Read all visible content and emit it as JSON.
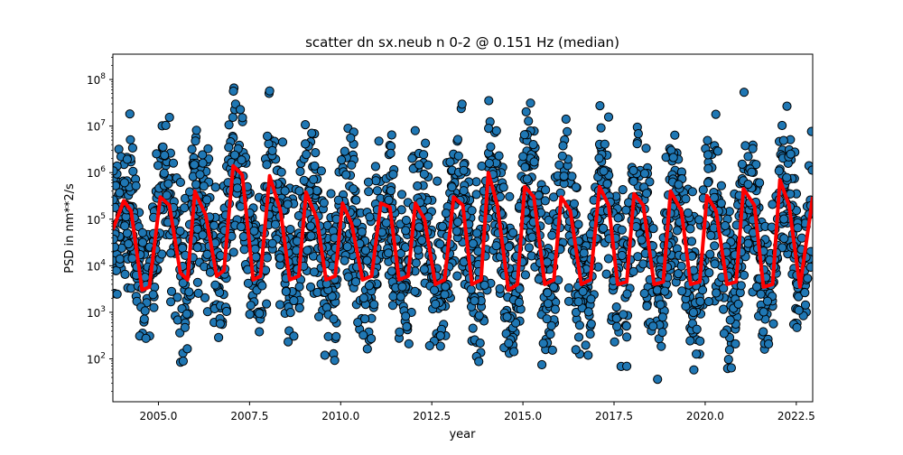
{
  "chart_data": {
    "type": "scatter",
    "title": "scatter dn sx.neub n 0-2 @ 0.151 Hz (median)",
    "xlabel": "year",
    "ylabel": "PSD in nm**2/s",
    "xlim": [
      2003.75,
      2022.95
    ],
    "ylim": [
      12,
      350000000
    ],
    "yscale": "log",
    "grid": false,
    "x_ticks": [
      2005,
      2007.5,
      2010,
      2012.5,
      2015,
      2017.5,
      2020,
      2022.5
    ],
    "x_tick_labels": [
      "2005.0",
      "2007.5",
      "2010.0",
      "2012.5",
      "2015.0",
      "2017.5",
      "2020.0",
      "2022.5"
    ],
    "y_ticks": [
      100,
      1000,
      10000,
      100000,
      1000000,
      10000000,
      100000000
    ],
    "y_tick_labels": [
      {
        "base": "10",
        "exp": "2"
      },
      {
        "base": "10",
        "exp": "3"
      },
      {
        "base": "10",
        "exp": "4"
      },
      {
        "base": "10",
        "exp": "5"
      },
      {
        "base": "10",
        "exp": "6"
      },
      {
        "base": "10",
        "exp": "7"
      },
      {
        "base": "10",
        "exp": "8"
      }
    ],
    "series": [
      {
        "kind": "scatter",
        "color": "#1f77b4",
        "edgecolor": "#000000",
        "x_range": [
          2003.75,
          2022.95
        ],
        "description_values": {
          "annual_peak_median": 300000,
          "annual_trough_median": 4000,
          "spread_low_factor": 0.25,
          "spread_high_factor": 6
        }
      },
      {
        "kind": "line",
        "color": "#ff0000",
        "x": [
          2003.75,
          2004.05,
          2004.25,
          2004.55,
          2004.75,
          2005.05,
          2005.3,
          2005.6,
          2005.8,
          2006.0,
          2006.3,
          2006.6,
          2006.8,
          2007.05,
          2007.3,
          2007.6,
          2007.8,
          2008.05,
          2008.35,
          2008.6,
          2008.85,
          2009.05,
          2009.35,
          2009.6,
          2009.85,
          2010.05,
          2010.3,
          2010.6,
          2010.85,
          2011.1,
          2011.35,
          2011.6,
          2011.85,
          2012.05,
          2012.3,
          2012.6,
          2012.85,
          2013.1,
          2013.35,
          2013.6,
          2013.85,
          2014.05,
          2014.3,
          2014.6,
          2014.85,
          2015.05,
          2015.3,
          2015.6,
          2015.85,
          2016.05,
          2016.3,
          2016.6,
          2016.85,
          2017.1,
          2017.35,
          2017.6,
          2017.85,
          2018.05,
          2018.3,
          2018.6,
          2018.85,
          2019.05,
          2019.35,
          2019.6,
          2019.85,
          2020.05,
          2020.3,
          2020.6,
          2020.85,
          2021.05,
          2021.35,
          2021.6,
          2021.85,
          2022.05,
          2022.3,
          2022.6,
          2022.95
        ],
        "y": [
          60000,
          250000,
          150000,
          3000,
          3500,
          300000,
          200000,
          7000,
          5000,
          400000,
          120000,
          6000,
          8000,
          1400000,
          900000,
          5000,
          6000,
          850000,
          150000,
          5000,
          6000,
          380000,
          100000,
          5000,
          6000,
          220000,
          80000,
          5000,
          6000,
          220000,
          180000,
          5000,
          6000,
          220000,
          100000,
          4000,
          5000,
          300000,
          200000,
          4000,
          5000,
          1000000,
          200000,
          3000,
          4000,
          500000,
          300000,
          4000,
          5000,
          300000,
          150000,
          4000,
          5000,
          500000,
          200000,
          4000,
          4500,
          350000,
          200000,
          4000,
          4500,
          400000,
          150000,
          4000,
          4500,
          320000,
          150000,
          4000,
          4500,
          450000,
          200000,
          3500,
          4000,
          700000,
          200000,
          3500,
          300000
        ]
      }
    ]
  }
}
